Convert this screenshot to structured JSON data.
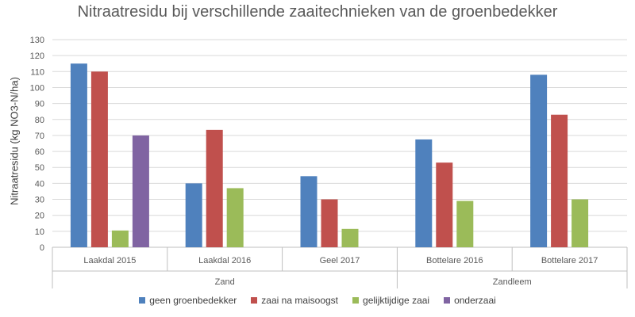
{
  "chart_data": {
    "type": "bar",
    "title": "Nitraatresidu bij verschillende zaaitechnieken van de groenbedekker",
    "xlabel": "",
    "ylabel": "Nitraatresidu (kg NO3-N/ha)",
    "ylim": [
      0,
      130
    ],
    "yticks": [
      0,
      10,
      20,
      30,
      40,
      50,
      60,
      70,
      80,
      90,
      100,
      110,
      120,
      130
    ],
    "grid": true,
    "legend_position": "bottom",
    "categories": [
      "Laakdal 2015",
      "Laakdal 2016",
      "Geel 2017",
      "Bottelare 2016",
      "Bottelare 2017"
    ],
    "groups": [
      {
        "label": "Zand",
        "categories": [
          "Laakdal 2015",
          "Laakdal 2016",
          "Geel 2017"
        ]
      },
      {
        "label": "Zandleem",
        "categories": [
          "Bottelare 2016",
          "Bottelare 2017"
        ]
      }
    ],
    "series": [
      {
        "name": "geen groenbedekker",
        "color": "#4F81BD",
        "values": [
          115,
          40,
          44.5,
          67.5,
          108
        ]
      },
      {
        "name": "zaai na maisoogst",
        "color": "#C0504D",
        "values": [
          110,
          73.5,
          30,
          53,
          83
        ]
      },
      {
        "name": "gelijktijdige zaai",
        "color": "#9BBB59",
        "values": [
          10.5,
          37,
          11.5,
          29,
          30
        ]
      },
      {
        "name": "onderzaai",
        "color": "#8064A2",
        "values": [
          70,
          null,
          null,
          null,
          null
        ]
      }
    ]
  }
}
